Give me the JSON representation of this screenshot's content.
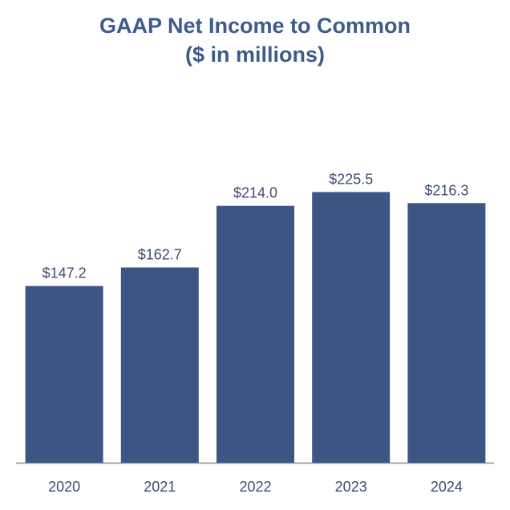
{
  "chart_data": {
    "type": "bar",
    "title": "GAAP Net Income to Common",
    "subtitle": "($ in millions)",
    "categories": [
      "2020",
      "2021",
      "2022",
      "2023",
      "2024"
    ],
    "values": [
      147.2,
      162.7,
      214.0,
      225.5,
      216.3
    ],
    "data_labels": [
      "$147.2",
      "$162.7",
      "$214.0",
      "$225.5",
      "$216.3"
    ],
    "xlabel": "",
    "ylabel": "",
    "ylim": [
      0,
      246
    ],
    "grid": false,
    "legend": "none",
    "colors": {
      "bar": "#3d5582",
      "title": "#3f5b8b",
      "label": "#3d4d6e",
      "axis": "#8a8a8a"
    }
  }
}
